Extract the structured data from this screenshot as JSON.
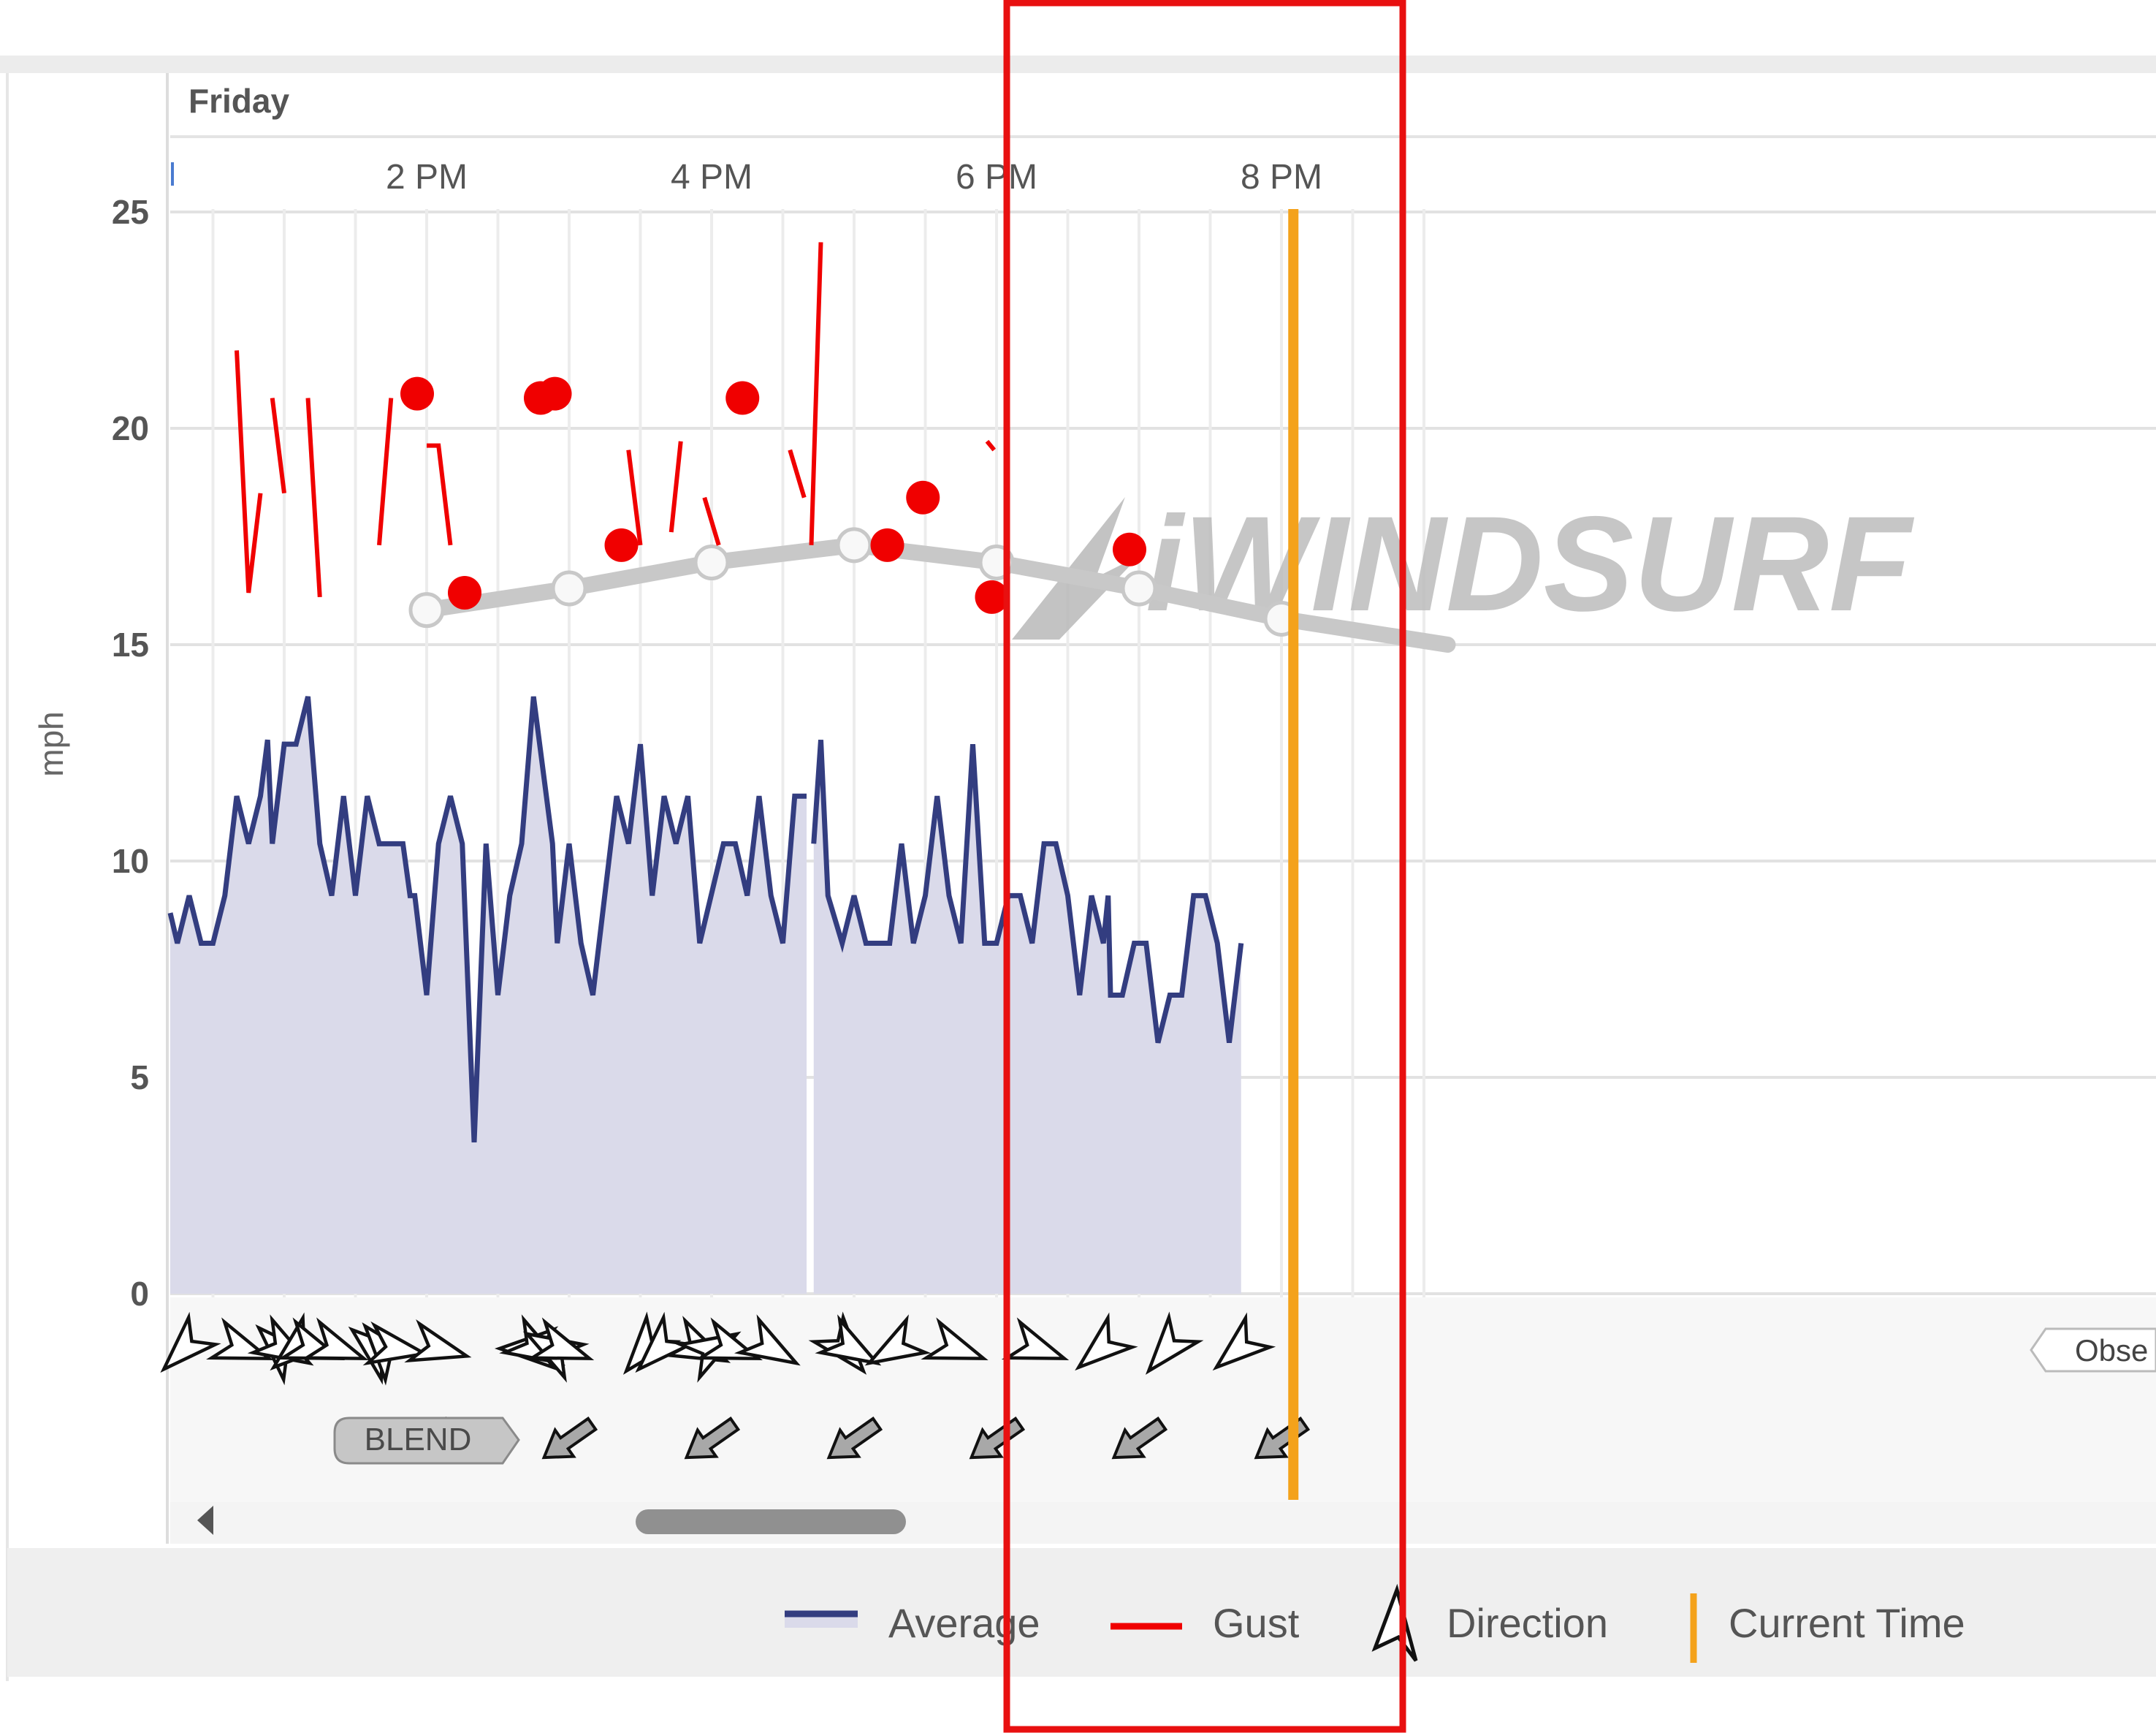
{
  "chart_data": {
    "type": "line",
    "day_label": "Friday",
    "ylabel": "mph",
    "ylim": [
      0,
      25
    ],
    "y_ticks": [
      0,
      5,
      10,
      15,
      20,
      25
    ],
    "x_ticks": [
      {
        "label": "2 PM",
        "t": 840
      },
      {
        "label": "4 PM",
        "t": 960
      },
      {
        "label": "6 PM",
        "t": 1080
      },
      {
        "label": "8 PM",
        "t": 1200
      }
    ],
    "x_range_minutes": [
      732,
      1270
    ],
    "grid": true,
    "legend_position": "bottom",
    "current_time_minutes": 1205,
    "colors": {
      "average": "#333d80",
      "average_fill": "#dadaea",
      "gust": "#f00000",
      "forecast": "#c8c8c8",
      "current_time": "#f4a21b",
      "highlight_box": "#e81010"
    },
    "series": [
      {
        "name": "Average",
        "segments": [
          [
            [
              732,
              8.8
            ],
            [
              735,
              8.1
            ],
            [
              740,
              9.2
            ],
            [
              745,
              8.1
            ],
            [
              750,
              8.1
            ],
            [
              755,
              9.2
            ],
            [
              760,
              11.5
            ],
            [
              765,
              10.4
            ],
            [
              770,
              11.5
            ],
            [
              773,
              12.8
            ],
            [
              775,
              10.4
            ],
            [
              780,
              12.7
            ],
            [
              785,
              12.7
            ],
            [
              790,
              13.8
            ],
            [
              795,
              10.4
            ],
            [
              800,
              9.2
            ],
            [
              805,
              11.5
            ],
            [
              810,
              9.2
            ],
            [
              815,
              11.5
            ],
            [
              820,
              10.4
            ],
            [
              825,
              10.4
            ],
            [
              830,
              10.4
            ],
            [
              833,
              9.2
            ],
            [
              835,
              9.2
            ],
            [
              840,
              6.9
            ],
            [
              845,
              10.4
            ],
            [
              850,
              11.5
            ],
            [
              855,
              10.4
            ],
            [
              860,
              3.5
            ],
            [
              865,
              10.4
            ],
            [
              870,
              6.9
            ],
            [
              875,
              9.2
            ],
            [
              880,
              10.4
            ],
            [
              885,
              13.8
            ],
            [
              893,
              10.4
            ],
            [
              895,
              8.1
            ],
            [
              900,
              10.4
            ],
            [
              905,
              8.1
            ],
            [
              910,
              6.9
            ],
            [
              920,
              11.5
            ],
            [
              925,
              10.4
            ],
            [
              930,
              12.7
            ],
            [
              935,
              9.2
            ],
            [
              940,
              11.5
            ],
            [
              945,
              10.4
            ],
            [
              950,
              11.5
            ],
            [
              955,
              8.1
            ],
            [
              965,
              10.4
            ],
            [
              970,
              10.4
            ],
            [
              975,
              9.2
            ],
            [
              980,
              11.5
            ],
            [
              985,
              9.2
            ],
            [
              990,
              8.1
            ],
            [
              995,
              11.5
            ],
            [
              1000,
              11.5
            ]
          ],
          [
            [
              1003,
              10.4
            ],
            [
              1006,
              12.8
            ],
            [
              1009,
              9.2
            ],
            [
              1015,
              8.1
            ],
            [
              1020,
              9.2
            ],
            [
              1025,
              8.1
            ],
            [
              1035,
              8.1
            ],
            [
              1040,
              10.4
            ],
            [
              1045,
              8.1
            ],
            [
              1050,
              9.2
            ],
            [
              1055,
              11.5
            ],
            [
              1060,
              9.2
            ],
            [
              1065,
              8.1
            ],
            [
              1070,
              12.7
            ],
            [
              1075,
              8.1
            ],
            [
              1080,
              8.1
            ],
            [
              1085,
              9.2
            ],
            [
              1090,
              9.2
            ],
            [
              1095,
              8.1
            ],
            [
              1100,
              10.4
            ],
            [
              1105,
              10.4
            ],
            [
              1110,
              9.2
            ],
            [
              1115,
              6.9
            ],
            [
              1120,
              9.2
            ],
            [
              1125,
              8.1
            ],
            [
              1127,
              9.2
            ],
            [
              1128,
              6.9
            ],
            [
              1133,
              6.9
            ],
            [
              1138,
              8.1
            ],
            [
              1143,
              8.1
            ],
            [
              1148,
              5.8
            ],
            [
              1153,
              6.9
            ],
            [
              1158,
              6.9
            ],
            [
              1163,
              9.2
            ],
            [
              1168,
              9.2
            ],
            [
              1173,
              8.1
            ],
            [
              1178,
              5.8
            ],
            [
              1183,
              8.1
            ]
          ]
        ]
      },
      {
        "name": "Gust",
        "segments": [
          [
            [
              760,
              21.8
            ],
            [
              765,
              16.2
            ],
            [
              770,
              18.5
            ]
          ],
          [
            [
              775,
              20.7
            ],
            [
              780,
              18.5
            ]
          ],
          [
            [
              790,
              20.7
            ],
            [
              795,
              16.1
            ]
          ],
          [
            [
              820,
              17.3
            ],
            [
              825,
              20.7
            ]
          ],
          [
            [
              840,
              19.6
            ],
            [
              845,
              19.6
            ],
            [
              850,
              17.3
            ]
          ],
          [
            [
              925,
              19.5
            ],
            [
              930,
              17.3
            ]
          ],
          [
            [
              943,
              17.6
            ],
            [
              947,
              19.7
            ]
          ],
          [
            [
              957,
              18.4
            ],
            [
              963,
              17.3
            ]
          ],
          [
            [
              993,
              19.5
            ],
            [
              999,
              18.4
            ]
          ],
          [
            [
              1002,
              17.3
            ],
            [
              1006,
              24.3
            ]
          ],
          [
            [
              1076,
              19.7
            ],
            [
              1079,
              19.5
            ]
          ]
        ],
        "points": [
          [
            836,
            20.8
          ],
          [
            856,
            16.2
          ],
          [
            888,
            20.7
          ],
          [
            894,
            20.8
          ],
          [
            922,
            17.3
          ],
          [
            973,
            20.7
          ],
          [
            1034,
            17.3
          ],
          [
            1049,
            18.4
          ],
          [
            1078,
            16.1
          ],
          [
            1136,
            17.2
          ]
        ]
      },
      {
        "name": "BLEND",
        "points": [
          [
            840,
            15.8
          ],
          [
            900,
            16.3
          ],
          [
            960,
            16.9
          ],
          [
            1020,
            17.3
          ],
          [
            1080,
            16.9
          ],
          [
            1140,
            16.3
          ],
          [
            1200,
            15.6
          ]
        ],
        "extends_to": [
          1270,
          15.0
        ]
      }
    ],
    "direction_arrows": [
      {
        "t": 738,
        "angle": 225
      },
      {
        "t": 762,
        "angle": 110
      },
      {
        "t": 778,
        "angle": 315
      },
      {
        "t": 780,
        "angle": 120
      },
      {
        "t": 785,
        "angle": 230
      },
      {
        "t": 792,
        "angle": 110
      },
      {
        "t": 802,
        "angle": 110
      },
      {
        "t": 818,
        "angle": 310
      },
      {
        "t": 822,
        "angle": 320
      },
      {
        "t": 827,
        "angle": 100
      },
      {
        "t": 845,
        "angle": 105
      },
      {
        "t": 883,
        "angle": 270
      },
      {
        "t": 886,
        "angle": 120
      },
      {
        "t": 893,
        "angle": 300
      },
      {
        "t": 897,
        "angle": 110
      },
      {
        "t": 932,
        "angle": 220
      },
      {
        "t": 938,
        "angle": 225
      },
      {
        "t": 955,
        "angle": 115
      },
      {
        "t": 960,
        "angle": 60
      },
      {
        "t": 968,
        "angle": 110
      },
      {
        "t": 985,
        "angle": 120
      },
      {
        "t": 1016,
        "angle": 140
      },
      {
        "t": 1019,
        "angle": 120
      },
      {
        "t": 1037,
        "angle": 240
      },
      {
        "t": 1063,
        "angle": 110
      },
      {
        "t": 1097,
        "angle": 110
      },
      {
        "t": 1124,
        "angle": 230
      },
      {
        "t": 1152,
        "angle": 220
      },
      {
        "t": 1182,
        "angle": 230
      }
    ],
    "forecast_arrows": [
      {
        "t": 840,
        "angle": 235
      },
      {
        "t": 900,
        "angle": 235
      },
      {
        "t": 960,
        "angle": 235
      },
      {
        "t": 1020,
        "angle": 235
      },
      {
        "t": 1080,
        "angle": 235
      },
      {
        "t": 1140,
        "angle": 235
      },
      {
        "t": 1200,
        "angle": 235
      }
    ]
  },
  "labels": {
    "blend_tag": "BLEND",
    "observed_tag": "Obse",
    "watermark": "iWINDSURF"
  },
  "legend": {
    "average": "Average",
    "gust": "Gust",
    "direction": "Direction",
    "current_time": "Current Time"
  }
}
